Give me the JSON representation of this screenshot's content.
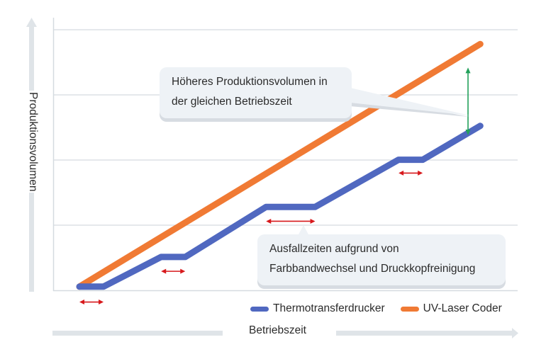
{
  "chart_data": {
    "type": "line",
    "title": "",
    "xlabel": "Betriebszeit",
    "ylabel": "Produktionsvolumen",
    "xlim": [
      0,
      100
    ],
    "ylim": [
      0,
      100
    ],
    "grid": true,
    "gridlines_y": [
      0,
      25,
      50,
      75,
      100
    ],
    "legend_position": "bottom-right",
    "series": [
      {
        "name": "Thermotransferdrucker",
        "color": "#5068c0",
        "points": [
          [
            0,
            1.4
          ],
          [
            5.7,
            1.4
          ],
          [
            19.3,
            12.8
          ],
          [
            25.0,
            12.8
          ],
          [
            44.1,
            32.0
          ],
          [
            55.7,
            32.0
          ],
          [
            75.4,
            50.1
          ],
          [
            81.1,
            50.1
          ],
          [
            94.7,
            63.1
          ]
        ]
      },
      {
        "name": "UV-Laser Coder",
        "color": "#f07a34",
        "points": [
          [
            0,
            1.4
          ],
          [
            94.7,
            94.5
          ]
        ]
      }
    ],
    "downtime_markers": [
      {
        "x_from": 0,
        "x_to": 5.7,
        "y": -4.5
      },
      {
        "x_from": 19.3,
        "x_to": 25.0,
        "y": 7.3
      },
      {
        "x_from": 44.1,
        "x_to": 55.7,
        "y": 26.5
      },
      {
        "x_from": 75.4,
        "x_to": 81.1,
        "y": 45.0
      }
    ],
    "downtime_marker_color": "#d7191c",
    "gap_marker": {
      "x": 91.8,
      "y_from": 59.5,
      "y_to": 85.5,
      "color": "#22a05a"
    },
    "annotations": [
      {
        "id": "higher_volume",
        "lines": [
          "Höheres Produktionsvolumen in",
          "der gleichen Betriebszeit"
        ]
      },
      {
        "id": "downtime",
        "lines": [
          "Ausfallzeiten aufgrund von",
          "Farbbandwechsel und Druckkopfreinigung"
        ]
      }
    ]
  },
  "colors": {
    "axis": "#d5dbe0",
    "grid": "#d5dbe0",
    "callout_bg": "#eef2f6",
    "callout_shadow": "#d7dce2",
    "text": "#2b2b2b"
  },
  "legend": {
    "items": [
      {
        "label": "Thermotransferdrucker",
        "color": "#5068c0"
      },
      {
        "label": "UV-Laser Coder",
        "color": "#f07a34"
      }
    ]
  },
  "axes": {
    "x_label": "Betriebszeit",
    "y_label": "Produktionsvolumen"
  }
}
